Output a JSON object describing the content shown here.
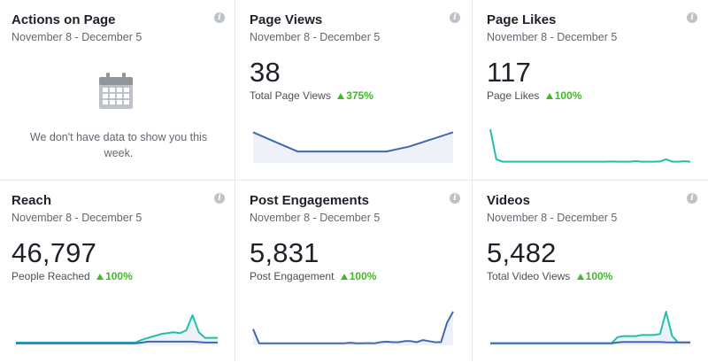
{
  "cards": [
    {
      "title": "Actions on Page",
      "date_range": "November 8 - December 5",
      "empty_icon": "calendar-icon",
      "empty_text": "We don't have data to show you this week."
    },
    {
      "title": "Page Views",
      "date_range": "November 8 - December 5",
      "value": "38",
      "label": "Total Page Views",
      "change": "375%"
    },
    {
      "title": "Page Likes",
      "date_range": "November 8 - December 5",
      "value": "117",
      "label": "Page Likes",
      "change": "100%"
    },
    {
      "title": "Reach",
      "date_range": "November 8 - December 5",
      "value": "46,797",
      "label": "People Reached",
      "change": "100%"
    },
    {
      "title": "Post Engagements",
      "date_range": "November 8 - December 5",
      "value": "5,831",
      "label": "Post Engagement",
      "change": "100%"
    },
    {
      "title": "Videos",
      "date_range": "November 8 - December 5",
      "value": "5,482",
      "label": "Total Video Views",
      "change": "100%"
    }
  ],
  "info_icon": "info-icon",
  "colors": {
    "blue": "#4267b2",
    "teal": "#20c0a8",
    "up": "#42b72a",
    "area": "#eef1f8"
  },
  "sparklines": {
    "page_views": {
      "color": "#4267b2",
      "fill": true,
      "values": [
        6,
        4,
        2,
        2,
        2,
        2,
        2,
        3,
        4.5,
        6
      ]
    },
    "page_likes": {
      "color": "#20c0a8",
      "fill": false,
      "values": [
        28,
        3,
        1,
        1,
        1,
        1,
        1,
        1,
        1,
        1,
        1,
        1,
        1,
        1,
        1,
        1,
        1,
        1,
        1,
        1,
        1.2,
        1,
        1,
        1,
        1.5,
        1,
        1,
        1,
        1.2,
        3,
        1,
        1,
        1.4,
        1
      ]
    },
    "reach": {
      "teal": [
        1,
        1,
        1,
        1,
        1,
        1,
        1,
        1,
        1,
        1,
        1,
        1,
        1,
        1,
        1,
        1,
        1,
        1,
        1,
        1.2,
        4,
        6,
        8,
        10,
        11,
        12,
        11,
        14,
        30,
        12,
        6,
        6,
        6
      ],
      "blue": [
        0.2,
        0.2,
        0.2,
        0.2,
        0.2,
        0.2,
        0.2,
        0.2,
        0.2,
        0.2,
        0.2,
        0.2,
        0.2,
        0.2,
        0.2,
        0.2,
        0.2,
        0.2,
        0.2,
        0.2,
        1,
        2,
        2,
        2,
        2,
        2,
        2,
        2,
        2,
        1.5,
        1,
        1,
        1
      ]
    },
    "post_engagements": {
      "color": "#4267b2",
      "fill": true,
      "values": [
        14,
        1,
        1,
        1,
        1,
        1,
        1,
        1,
        1,
        1,
        1,
        1,
        1,
        1,
        1,
        1,
        1.5,
        1,
        1,
        1.2,
        1,
        2,
        2.5,
        2,
        2,
        3,
        3,
        2,
        4,
        3,
        2,
        2,
        20,
        30
      ]
    },
    "videos": {
      "teal": [
        0.3,
        0.3,
        0.3,
        0.3,
        0.3,
        0.3,
        0.3,
        0.3,
        0.3,
        0.3,
        0.3,
        0.3,
        0.3,
        0.3,
        0.3,
        0.3,
        0.3,
        0.3,
        0.3,
        0.3,
        0.3,
        6,
        7,
        7,
        7,
        8,
        8,
        8,
        9,
        30,
        7,
        1,
        1,
        1
      ],
      "blue": [
        0.2,
        0.2,
        0.2,
        0.2,
        0.2,
        0.2,
        0.2,
        0.2,
        0.2,
        0.2,
        0.2,
        0.2,
        0.2,
        0.2,
        0.2,
        0.2,
        0.2,
        0.2,
        0.2,
        0.2,
        0.2,
        1,
        1.5,
        1.5,
        1.5,
        1.5,
        1.5,
        1.5,
        1.5,
        1.2,
        1,
        1,
        1,
        1
      ]
    }
  }
}
